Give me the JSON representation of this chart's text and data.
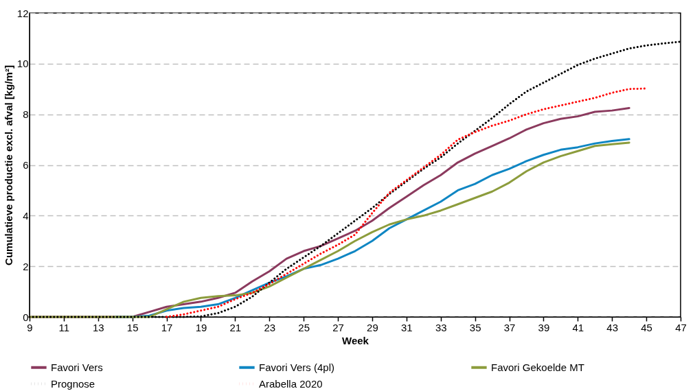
{
  "chart_data": {
    "type": "line",
    "xlabel": "Week",
    "ylabel": "Cumulatieve productie excl. afval [kg/m²]",
    "xlim": [
      9,
      47
    ],
    "xticks": [
      9,
      11,
      13,
      15,
      17,
      19,
      21,
      23,
      25,
      27,
      29,
      31,
      33,
      35,
      37,
      39,
      41,
      43,
      45,
      47
    ],
    "ylim": [
      0,
      12
    ],
    "yticks": [
      0,
      2,
      4,
      6,
      8,
      10,
      12
    ],
    "grid": "y",
    "legend": "bottom",
    "marker": "none",
    "series": [
      {
        "name": "Favori Vers",
        "color": "#8b3a5e",
        "line_style": "solid",
        "x": [
          9,
          10,
          11,
          12,
          13,
          14,
          15,
          16,
          17,
          18,
          19,
          20,
          21,
          22,
          23,
          24,
          25,
          26,
          27,
          28,
          29,
          30,
          31,
          32,
          33,
          34,
          35,
          36,
          37,
          38,
          39,
          40,
          41,
          42,
          43,
          44
        ],
        "values": [
          0,
          0,
          0,
          0,
          0,
          0,
          0,
          0.2,
          0.4,
          0.5,
          0.6,
          0.75,
          0.95,
          1.4,
          1.8,
          2.3,
          2.6,
          2.8,
          3.1,
          3.4,
          3.8,
          4.3,
          4.75,
          5.2,
          5.6,
          6.1,
          6.45,
          6.75,
          7.05,
          7.4,
          7.65,
          7.82,
          7.92,
          8.1,
          8.15,
          8.25
        ]
      },
      {
        "name": "Favori Vers (4pl)",
        "color": "#0f86c3",
        "line_style": "solid",
        "x": [
          14,
          15,
          16,
          17,
          18,
          19,
          20,
          21,
          22,
          23,
          24,
          25,
          26,
          27,
          28,
          29,
          30,
          31,
          32,
          33,
          34,
          35,
          36,
          37,
          38,
          39,
          40,
          41,
          42,
          43,
          44
        ],
        "values": [
          0,
          0,
          0.05,
          0.25,
          0.35,
          0.4,
          0.5,
          0.75,
          1.05,
          1.35,
          1.6,
          1.9,
          2.05,
          2.3,
          2.6,
          3.0,
          3.5,
          3.85,
          4.2,
          4.55,
          5.0,
          5.25,
          5.6,
          5.85,
          6.15,
          6.4,
          6.6,
          6.7,
          6.85,
          6.95,
          7.02
        ]
      },
      {
        "name": "Favori Gekoelde MT",
        "color": "#8c9c3c",
        "line_style": "solid",
        "x": [
          9,
          10,
          11,
          12,
          13,
          14,
          15,
          16,
          17,
          18,
          19,
          20,
          21,
          22,
          23,
          24,
          25,
          26,
          27,
          28,
          29,
          30,
          31,
          32,
          33,
          34,
          35,
          36,
          37,
          38,
          39,
          40,
          41,
          42,
          43,
          44
        ],
        "values": [
          0,
          0,
          0,
          0,
          0,
          0,
          0,
          0,
          0.3,
          0.6,
          0.75,
          0.82,
          0.85,
          0.95,
          1.2,
          1.55,
          1.9,
          2.25,
          2.6,
          3.0,
          3.35,
          3.65,
          3.85,
          4.0,
          4.2,
          4.45,
          4.7,
          4.95,
          5.3,
          5.75,
          6.1,
          6.35,
          6.55,
          6.75,
          6.82,
          6.88
        ]
      },
      {
        "name": "Prognose",
        "color": "#000000",
        "line_style": "dotted",
        "x": [
          9,
          10,
          11,
          12,
          13,
          14,
          15,
          16,
          17,
          18,
          19,
          20,
          21,
          22,
          23,
          24,
          25,
          26,
          27,
          28,
          29,
          30,
          31,
          32,
          33,
          34,
          35,
          36,
          37,
          38,
          39,
          40,
          41,
          42,
          43,
          44,
          45,
          46,
          47
        ],
        "values": [
          0,
          0,
          0,
          0,
          0,
          0,
          0,
          0,
          0,
          0,
          0.02,
          0.15,
          0.4,
          0.8,
          1.35,
          1.9,
          2.35,
          2.8,
          3.3,
          3.8,
          4.3,
          4.85,
          5.35,
          5.85,
          6.3,
          6.85,
          7.35,
          7.85,
          8.4,
          8.9,
          9.25,
          9.6,
          9.95,
          10.2,
          10.4,
          10.6,
          10.72,
          10.8,
          10.87
        ]
      },
      {
        "name": "Arabella 2020",
        "color": "#ff0000",
        "line_style": "dotted",
        "x": [
          17,
          18,
          19,
          20,
          21,
          22,
          23,
          24,
          25,
          26,
          27,
          28,
          29,
          30,
          31,
          32,
          33,
          34,
          35,
          36,
          37,
          38,
          39,
          40,
          41,
          42,
          43,
          44,
          45
        ],
        "values": [
          0,
          0.1,
          0.25,
          0.4,
          0.7,
          0.95,
          1.3,
          1.7,
          2.1,
          2.5,
          2.85,
          3.25,
          4.1,
          4.9,
          5.4,
          5.9,
          6.4,
          7.0,
          7.3,
          7.55,
          7.75,
          8.0,
          8.2,
          8.35,
          8.5,
          8.65,
          8.85,
          9.0,
          9.02
        ]
      }
    ]
  }
}
